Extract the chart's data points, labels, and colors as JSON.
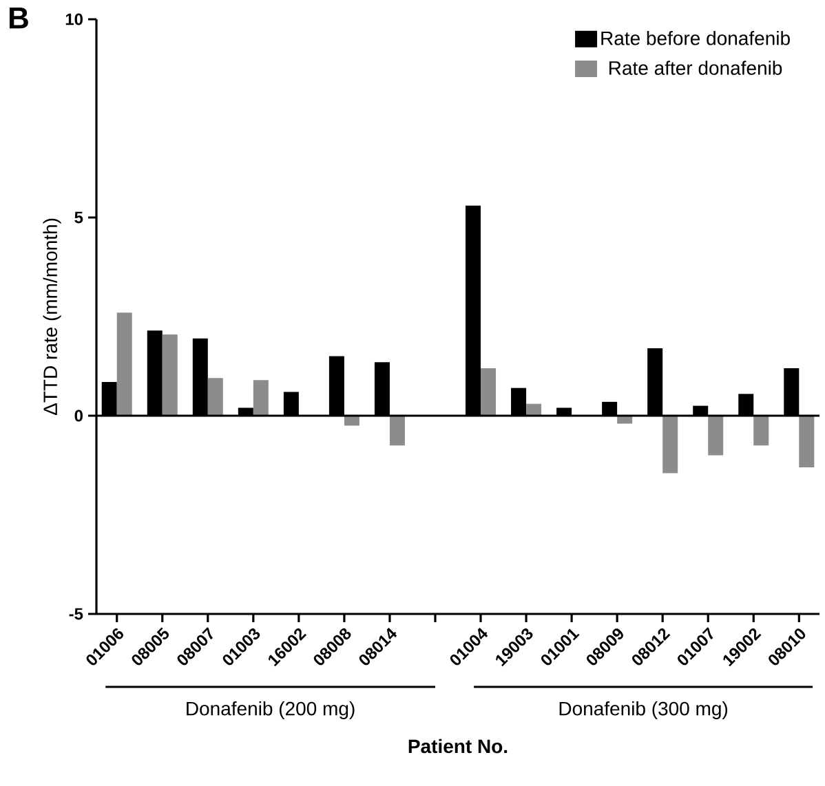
{
  "chart_data": {
    "type": "bar",
    "ylabel": "ΔTTD rate (mm/month)",
    "xlabel": "Patient No.",
    "categories": [
      "01006",
      "08005",
      "08007",
      "01003",
      "16002",
      "08008",
      "08014",
      null,
      "01004",
      "19003",
      "01001",
      "08009",
      "08012",
      "01007",
      "19002",
      "08010"
    ],
    "series": [
      {
        "name": "Rate before donafenib",
        "color": "#000000",
        "values": [
          0.85,
          2.15,
          1.95,
          0.2,
          0.6,
          1.5,
          1.35,
          null,
          5.3,
          0.7,
          0.2,
          0.35,
          1.7,
          0.25,
          0.55,
          1.2
        ]
      },
      {
        "name": "Rate after donafenib",
        "color": "#8c8c8c",
        "values": [
          2.6,
          2.05,
          0.95,
          0.9,
          null,
          -0.25,
          -0.75,
          null,
          1.2,
          0.3,
          null,
          -0.2,
          -1.45,
          -1.0,
          -0.75,
          -1.3
        ]
      }
    ],
    "ylim": [
      -5,
      10
    ],
    "yticks": [
      -5,
      0,
      5,
      10
    ],
    "ref_lines": [
      {
        "axis": "y",
        "value": 0
      }
    ],
    "annotations": [
      "B",
      "Donafenib (200 mg)",
      "Donafenib (300 mg)"
    ],
    "legend": "top right",
    "grid": false
  }
}
